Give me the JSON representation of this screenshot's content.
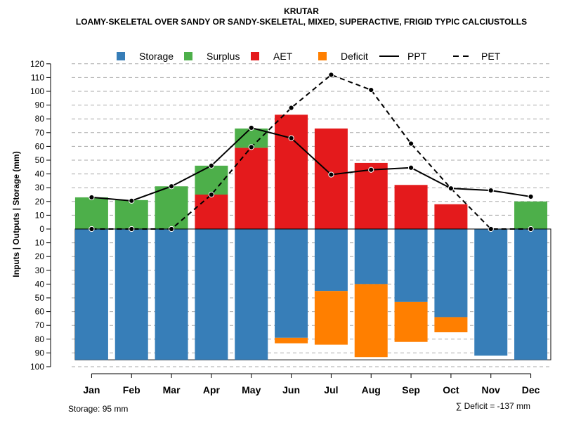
{
  "chart_data": {
    "type": "bar",
    "title": "KRUTAR",
    "subtitle": "LOAMY-SKELETAL OVER SANDY OR SANDY-SKELETAL, MIXED, SUPERACTIVE, FRIGID TYPIC CALCIUSTOLLS",
    "ylabel": "Inputs | Outputs | Storage     (mm)",
    "categories": [
      "Jan",
      "Feb",
      "Mar",
      "Apr",
      "May",
      "Jun",
      "Jul",
      "Aug",
      "Sep",
      "Oct",
      "Nov",
      "Dec"
    ],
    "ylim": [
      -100,
      120
    ],
    "yticks_pos": [
      "120",
      "110",
      "100",
      "90",
      "80",
      "70",
      "60",
      "50",
      "40",
      "30",
      "20",
      "10",
      "0"
    ],
    "yticks_neg": [
      "10",
      "20",
      "30",
      "40",
      "50",
      "60",
      "70",
      "80",
      "90",
      "100"
    ],
    "storage": [
      95,
      95,
      95,
      95,
      95,
      79,
      45,
      40,
      53,
      64,
      92,
      95
    ],
    "deficit": [
      0,
      0,
      0,
      0,
      0,
      4,
      39,
      53,
      29,
      11,
      0,
      0
    ],
    "aet": [
      0,
      0,
      0,
      25,
      59,
      83,
      73,
      48,
      32,
      18,
      0,
      0
    ],
    "surplus": [
      23,
      21,
      31,
      21,
      14,
      0,
      0,
      0,
      0,
      0,
      0,
      20
    ],
    "ppt": [
      23,
      20.5,
      31,
      46,
      73.5,
      66,
      39.5,
      43,
      44.5,
      29.5,
      28,
      23.5
    ],
    "pet": [
      0,
      0,
      0,
      25,
      59.5,
      88,
      112,
      101,
      62,
      29.5,
      0,
      0
    ],
    "legend": [
      {
        "label": "Storage",
        "color": "#377EB8",
        "kind": "square"
      },
      {
        "label": "Surplus",
        "color": "#4DAF4A",
        "kind": "square"
      },
      {
        "label": "AET",
        "color": "#E41A1C",
        "kind": "square"
      },
      {
        "label": "Deficit",
        "color": "#FF7F00",
        "kind": "square"
      },
      {
        "label": "PPT",
        "color": "#000000",
        "kind": "solid"
      },
      {
        "label": "PET",
        "color": "#000000",
        "kind": "dashed"
      }
    ],
    "colors": {
      "storage": "#377EB8",
      "surplus": "#4DAF4A",
      "aet": "#E41A1C",
      "deficit": "#FF7F00"
    },
    "storage_note": "Storage: 95 mm",
    "deficit_note": "∑ Deficit = -137 mm",
    "total_storage": 95
  }
}
